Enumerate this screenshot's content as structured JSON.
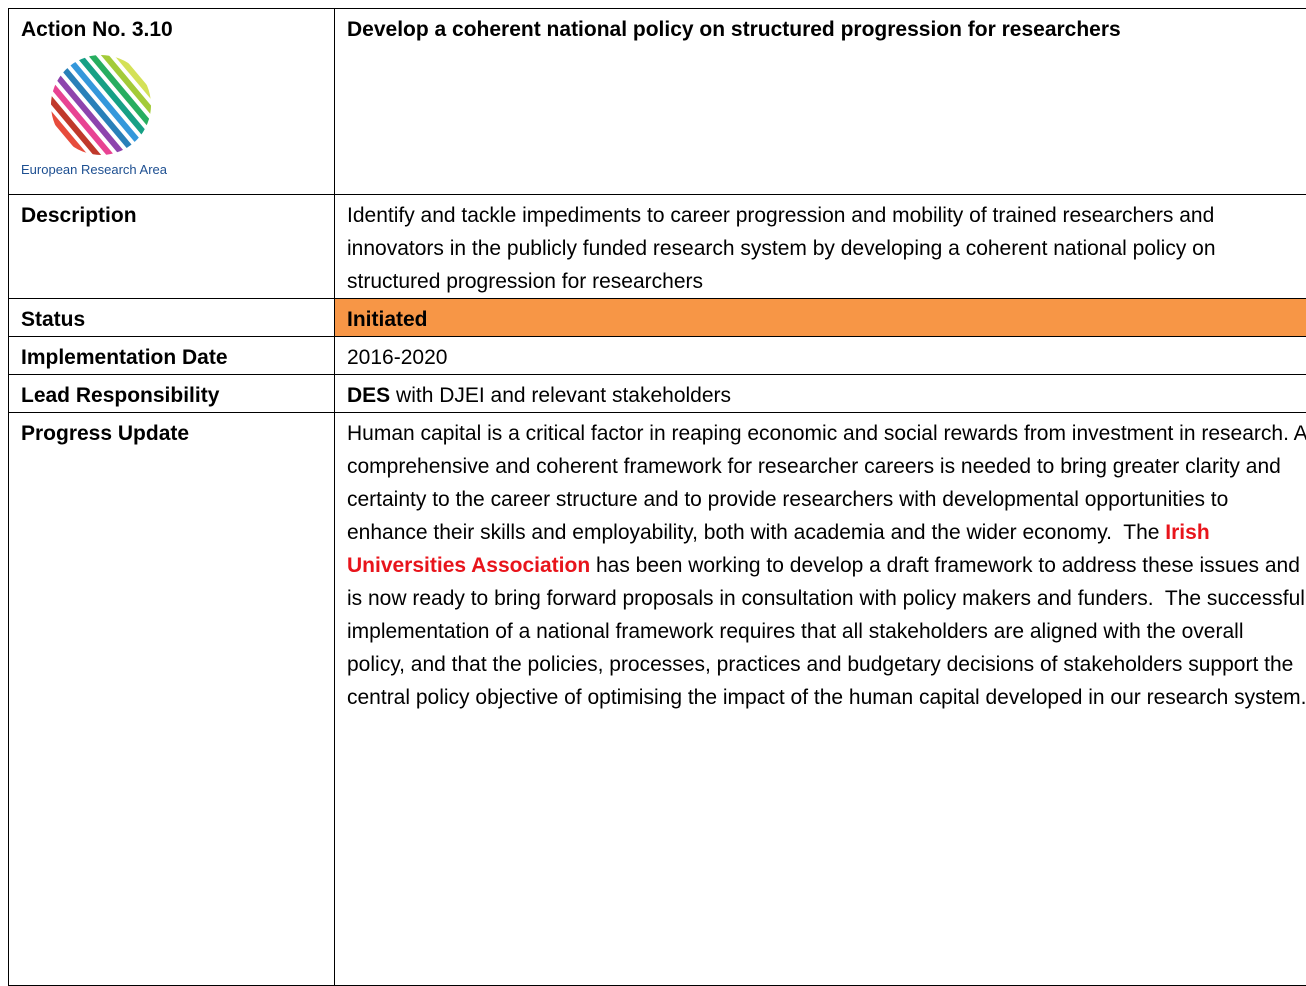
{
  "header": {
    "label": "Action No. 3.10",
    "title": "Develop a coherent national policy on structured progression for researchers",
    "logo_caption": "European Research Area"
  },
  "rows": [
    {
      "key": "Description",
      "value": "Identify and tackle impediments to career progression and mobility of trained researchers and innovators in the publicly funded research system by developing a coherent national policy on structured progression for researchers"
    },
    {
      "key": "Status",
      "value": "Initiated"
    },
    {
      "key": "Implementation Date",
      "value": "2016-2020"
    },
    {
      "key": "Lead Responsibility",
      "value_bold": "DES",
      "value": " with DJEI and relevant stakeholders"
    },
    {
      "key": "Progress Update",
      "value_before": "Human capital is a critical factor in reaping economic and social rewards from investment in research. A comprehensive and coherent framework for researcher careers is needed to bring greater clarity and certainty to the career structure and to provide researchers with developmental opportunities to enhance their skills and employability, both with academia and the wider economy.  The ",
      "value_highlight": "Irish Universities Association",
      "value_after": " has been working to develop a draft framework to address these issues and is now ready to bring forward proposals in consultation with policy makers and funders.  The successful implementation of a national framework requires that all stakeholders are aligned with the overall policy, and that the policies, processes, practices and budgetary decisions of stakeholders support the central policy objective of optimising the impact of the human capital developed in our research system."
    }
  ]
}
